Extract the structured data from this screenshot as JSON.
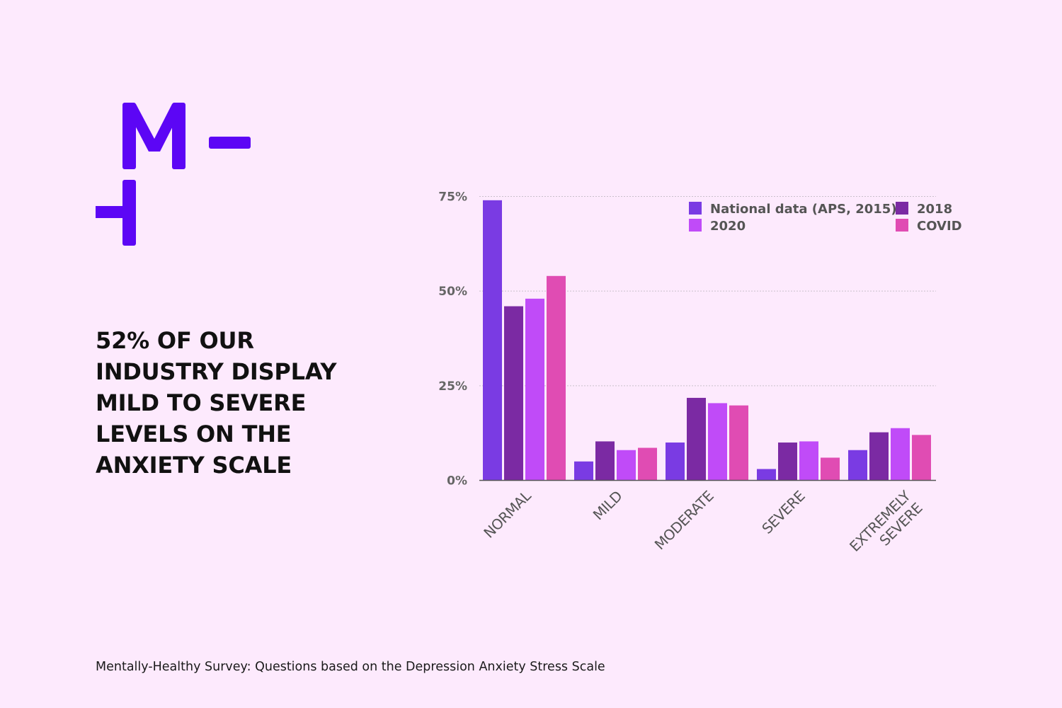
{
  "brand": {
    "logo_name": "mentally-healthy-logo",
    "color": "#5c06f5"
  },
  "headline": {
    "lines": [
      "52% OF OUR",
      "INDUSTRY DISPLAY",
      "MILD TO SEVERE",
      "LEVELS ON THE",
      "ANXIETY SCALE"
    ]
  },
  "footnote": "Mentally-Healthy Survey: Questions based on the Depression Anxiety Stress Scale",
  "chart_data": {
    "type": "bar",
    "title": "",
    "xlabel": "",
    "ylabel": "",
    "ylim": [
      0,
      75
    ],
    "y_ticks": [
      0,
      25,
      50,
      75
    ],
    "y_tick_labels": [
      "0%",
      "25%",
      "50%",
      "75%"
    ],
    "grid": true,
    "legend_position": "top-right",
    "categories": [
      [
        "NORMAL"
      ],
      [
        "MILD"
      ],
      [
        "MODERATE"
      ],
      [
        "SEVERE"
      ],
      [
        "EXTREMELY",
        "SEVERE"
      ]
    ],
    "series": [
      {
        "name": "National data (APS, 2015)",
        "color": "#7a3be3",
        "values": [
          74,
          5,
          10,
          3,
          8
        ]
      },
      {
        "name": "2018",
        "color": "#7b2aa3",
        "values": [
          46,
          10.3,
          21.8,
          10,
          12.7
        ]
      },
      {
        "name": "2020",
        "color": "#c04bf8",
        "values": [
          48,
          8,
          20.4,
          10.3,
          13.8
        ]
      },
      {
        "name": "COVID",
        "color": "#e04cb3",
        "values": [
          54,
          8.6,
          19.8,
          6,
          12
        ]
      }
    ]
  }
}
